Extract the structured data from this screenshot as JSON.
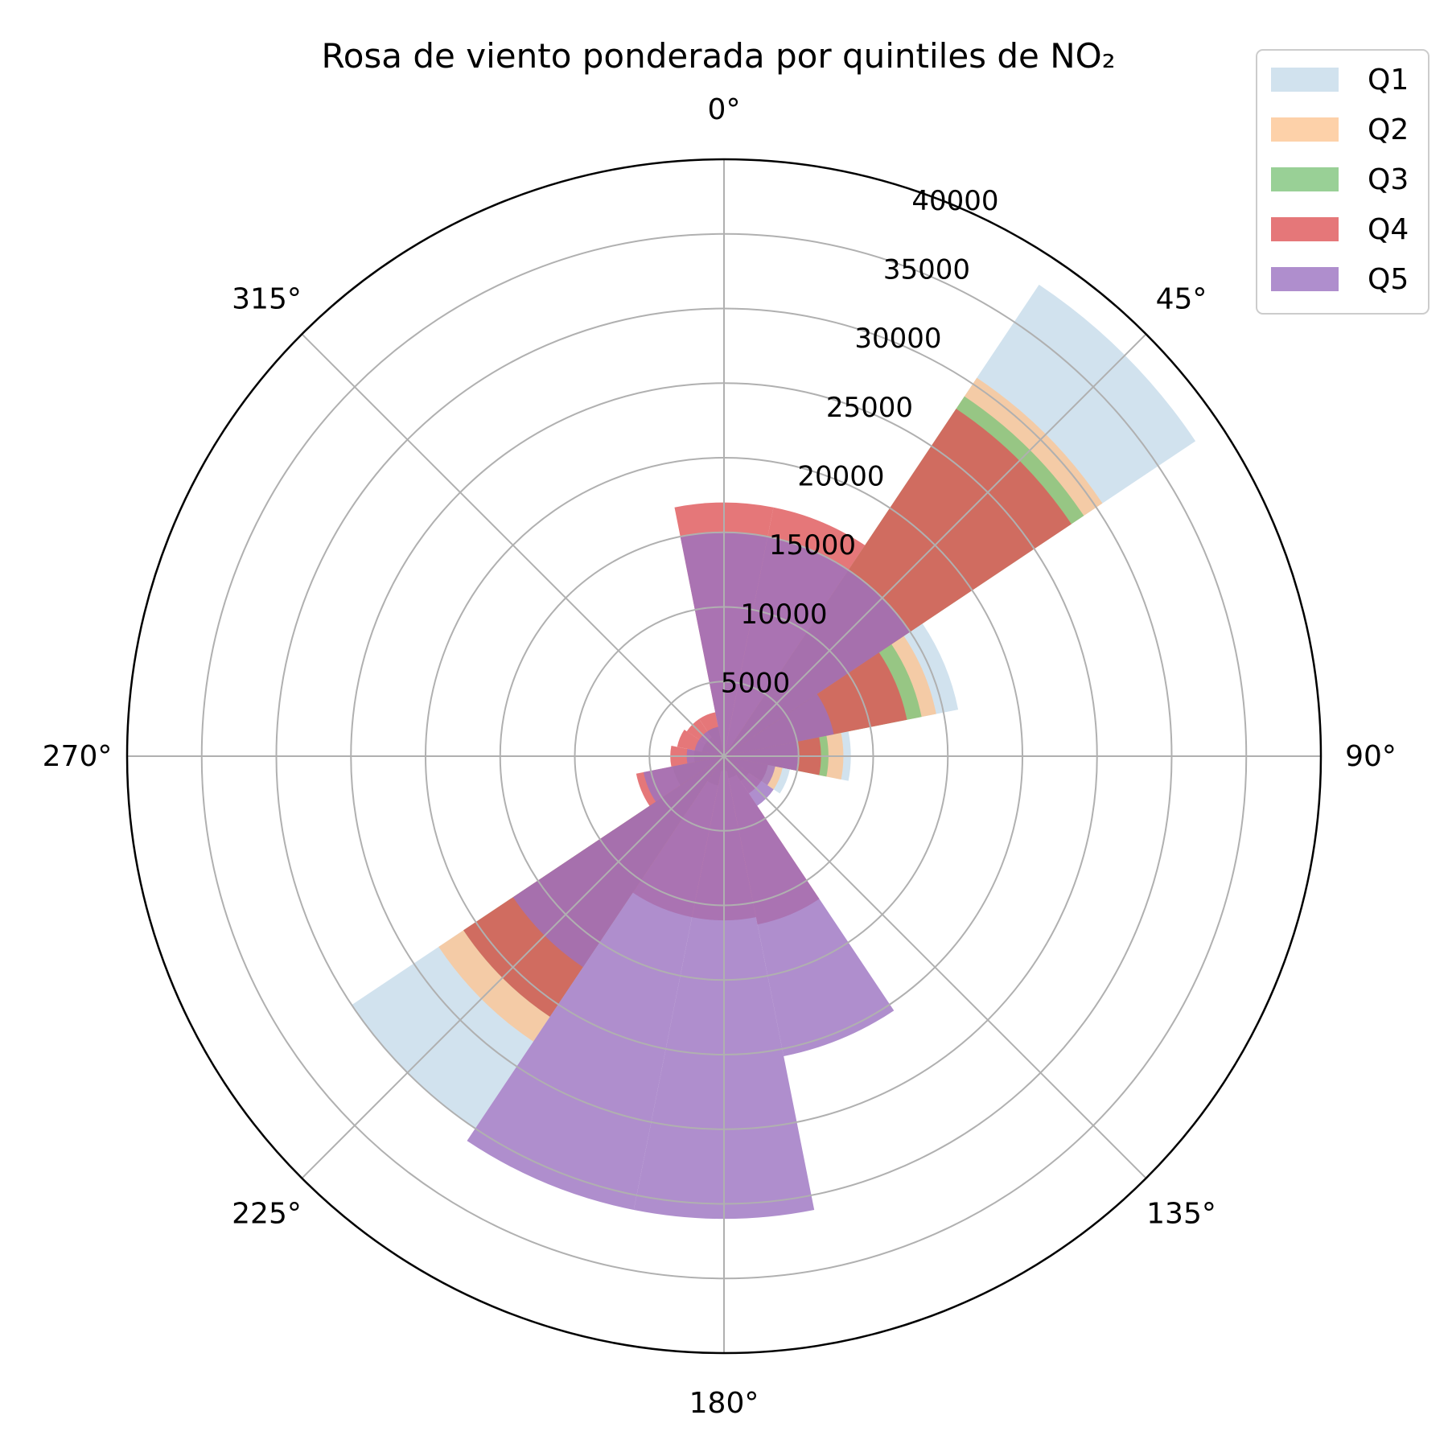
{
  "chart_data": {
    "type": "bar",
    "subtype": "polar-wind-rose",
    "title": "Rosa de viento ponderada por quintiles de NO₂",
    "x_unit": "degrees",
    "x": [
      0,
      22.5,
      45,
      67.5,
      90,
      112.5,
      135,
      157.5,
      180,
      202.5,
      225,
      247.5,
      270,
      292.5,
      315,
      337.5
    ],
    "x_tick_labels": [
      "0°",
      "45°",
      "90°",
      "135°",
      "180°",
      "225°",
      "270°",
      "315°"
    ],
    "r_ticks": [
      5000,
      10000,
      15000,
      20000,
      25000,
      30000,
      35000,
      40000
    ],
    "r_tick_labels": [
      "5000",
      "10000",
      "15000",
      "20000",
      "25000",
      "30000",
      "35000",
      "40000"
    ],
    "ylim": [
      0,
      40000
    ],
    "grid": true,
    "legend_position": "top-right",
    "series": [
      {
        "name": "Q1",
        "color": "#c6dbea",
        "values": [
          0,
          0,
          38000,
          16000,
          8500,
          4500,
          2000,
          1500,
          1000,
          2000,
          30000,
          3500,
          2000,
          1500,
          1500,
          2000
        ]
      },
      {
        "name": "Q2",
        "color": "#fdc594",
        "values": [
          0,
          0,
          30500,
          14500,
          8000,
          4000,
          2000,
          1500,
          1000,
          2000,
          23000,
          3500,
          2000,
          1500,
          1500,
          2000
        ]
      },
      {
        "name": "Q3",
        "color": "#7fc47c",
        "values": [
          0,
          0,
          29000,
          13500,
          7000,
          3000,
          2000,
          1500,
          1000,
          2000,
          21000,
          3500,
          2000,
          1500,
          1500,
          2000
        ]
      },
      {
        "name": "Q4",
        "color": "#de5557",
        "values": [
          17000,
          17000,
          28000,
          12500,
          6500,
          3000,
          3000,
          11500,
          11000,
          11000,
          21000,
          6000,
          3600,
          3200,
          3000,
          3000
        ]
      },
      {
        "name": "Q5",
        "color": "#9b72c1",
        "values": [
          15000,
          15000,
          15000,
          7500,
          5000,
          3500,
          4000,
          20500,
          31000,
          31000,
          17000,
          5500,
          2500,
          2000,
          2000,
          2000
        ]
      }
    ]
  }
}
